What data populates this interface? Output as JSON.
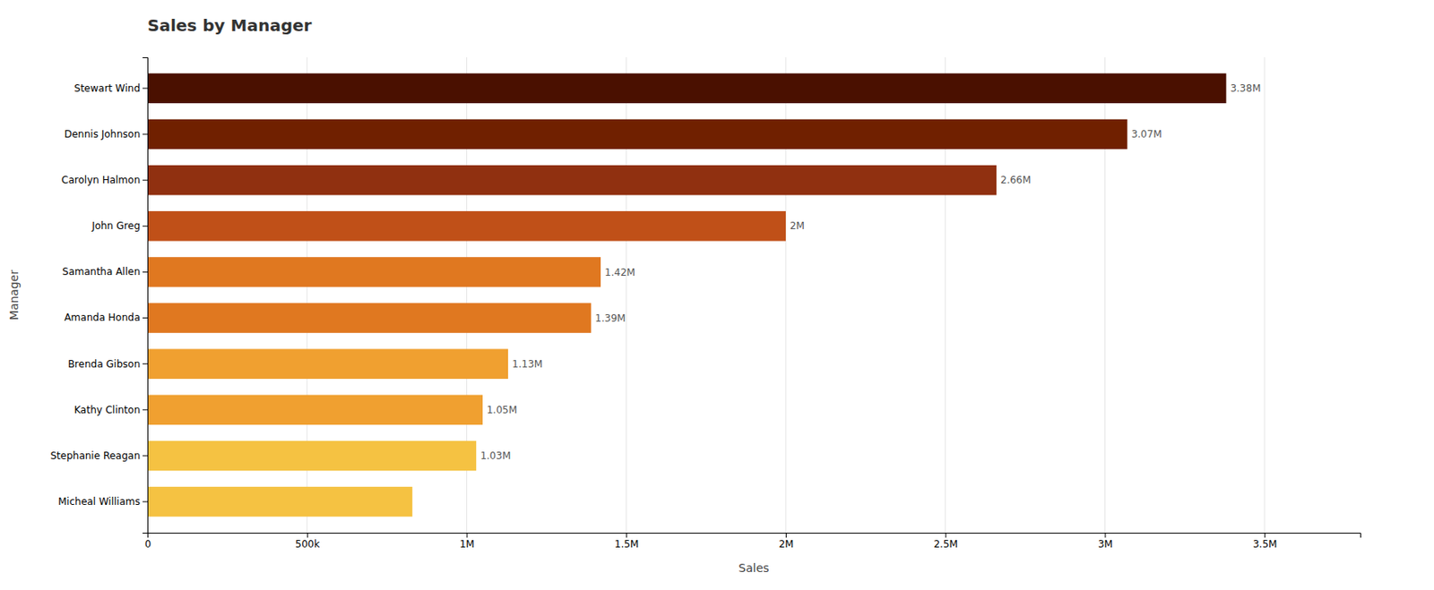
{
  "chart_data": {
    "type": "bar",
    "orientation": "horizontal",
    "title": "Sales by Manager",
    "xlabel": "Sales",
    "ylabel": "Manager",
    "categories": [
      "Micheal Williams",
      "Stephanie Reagan",
      "Kathy Clinton",
      "Brenda Gibson",
      "Amanda Honda",
      "Samantha Allen",
      "John Greg",
      "Carolyn Halmon",
      "Dennis Johnson",
      "Stewart Wind"
    ],
    "values": [
      0.83,
      1.03,
      1.05,
      1.13,
      1.39,
      1.42,
      2.0,
      2.66,
      3.07,
      3.38
    ],
    "value_labels": [
      null,
      "1.03M",
      "1.05M",
      "1.13M",
      "1.39M",
      "1.42M",
      "2M",
      "2.66M",
      "3.07M",
      "3.38M"
    ],
    "colors": [
      "#f5c242",
      "#f5c242",
      "#f0a030",
      "#f0a030",
      "#e07820",
      "#e07820",
      "#c05018",
      "#903010",
      "#702000",
      "#4a1000"
    ],
    "xlim": [
      0,
      3.8
    ],
    "xticks": [
      0,
      {
        "value": 0.5,
        "label": "500k"
      },
      {
        "value": 1.0,
        "label": "1M"
      },
      {
        "value": 1.5,
        "label": "1.5M"
      },
      {
        "value": 2.0,
        "label": "2M"
      },
      {
        "value": 2.5,
        "label": "2.5M"
      },
      {
        "value": 3.0,
        "label": "3M"
      },
      {
        "value": 3.5,
        "label": "3.5M"
      }
    ],
    "grid": true
  }
}
